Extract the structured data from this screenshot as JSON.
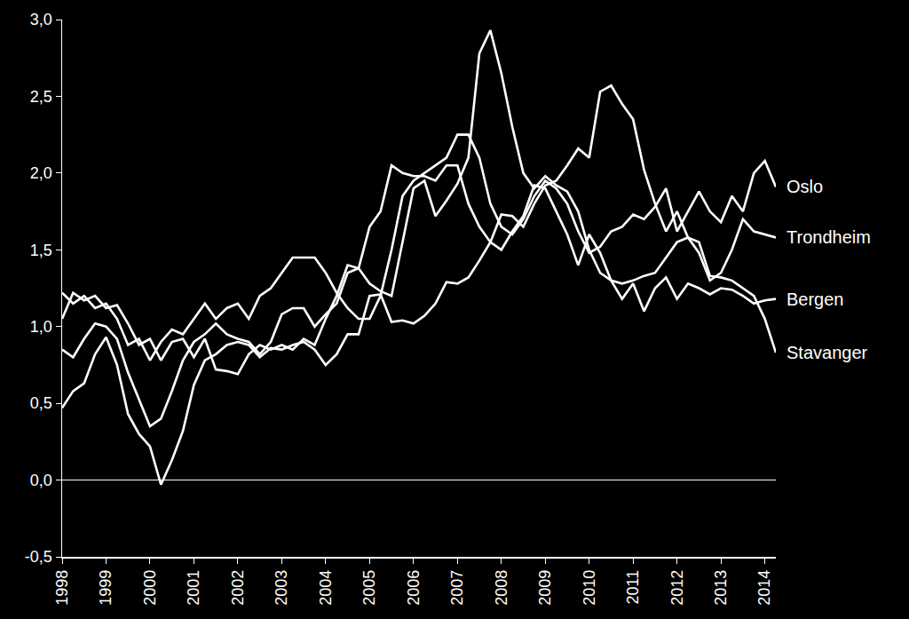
{
  "chart_data": {
    "type": "line",
    "x": [
      1998,
      1998.25,
      1998.5,
      1998.75,
      1999,
      1999.25,
      1999.5,
      1999.75,
      2000,
      2000.25,
      2000.5,
      2000.75,
      2001,
      2001.25,
      2001.5,
      2001.75,
      2002,
      2002.25,
      2002.5,
      2002.75,
      2003,
      2003.25,
      2003.5,
      2003.75,
      2004,
      2004.25,
      2004.5,
      2004.75,
      2005,
      2005.25,
      2005.5,
      2005.75,
      2006,
      2006.25,
      2006.5,
      2006.75,
      2007,
      2007.25,
      2007.5,
      2007.75,
      2008,
      2008.25,
      2008.5,
      2008.75,
      2009,
      2009.25,
      2009.5,
      2009.75,
      2010,
      2010.25,
      2010.5,
      2010.75,
      2011,
      2011.25,
      2011.5,
      2011.75,
      2012,
      2012.25,
      2012.5,
      2012.75,
      2013,
      2013.25,
      2013.5,
      2013.75,
      2014,
      2014.25
    ],
    "series": [
      {
        "name": "Oslo",
        "color": "#ffffff",
        "values": [
          1.22,
          1.15,
          1.2,
          1.12,
          1.15,
          1.05,
          0.88,
          0.92,
          0.78,
          0.9,
          0.98,
          0.95,
          1.05,
          1.15,
          1.05,
          1.12,
          1.15,
          1.05,
          1.2,
          1.25,
          1.35,
          1.45,
          1.45,
          1.45,
          1.35,
          1.22,
          1.12,
          1.05,
          1.05,
          1.2,
          1.5,
          1.85,
          1.95,
          2.0,
          2.05,
          2.1,
          2.25,
          2.25,
          2.1,
          1.8,
          1.65,
          1.6,
          1.7,
          1.85,
          1.95,
          1.9,
          1.8,
          1.62,
          1.48,
          1.52,
          1.62,
          1.65,
          1.73,
          1.7,
          1.78,
          1.9,
          1.62,
          1.75,
          1.88,
          1.75,
          1.68,
          1.85,
          1.75,
          2.0,
          2.08,
          1.91
        ]
      },
      {
        "name": "Trondheim",
        "color": "#ffffff",
        "values": [
          1.05,
          1.22,
          1.17,
          1.2,
          1.12,
          1.14,
          1.02,
          0.88,
          0.92,
          0.78,
          0.9,
          0.92,
          0.8,
          0.92,
          0.72,
          0.71,
          0.69,
          0.82,
          0.88,
          0.85,
          0.88,
          0.85,
          0.92,
          0.88,
          1.05,
          1.2,
          1.4,
          1.38,
          1.28,
          1.23,
          1.2,
          1.55,
          1.9,
          1.95,
          1.72,
          1.82,
          1.93,
          2.1,
          2.78,
          2.93,
          2.65,
          2.3,
          2.0,
          1.9,
          1.98,
          1.92,
          1.88,
          1.75,
          1.5,
          1.35,
          1.3,
          1.28,
          1.3,
          1.33,
          1.35,
          1.45,
          1.55,
          1.58,
          1.48,
          1.3,
          1.35,
          1.5,
          1.7,
          1.62,
          1.6,
          1.58
        ]
      },
      {
        "name": "Bergen",
        "color": "#ffffff",
        "values": [
          0.85,
          0.8,
          0.92,
          1.02,
          1.0,
          0.92,
          0.7,
          0.52,
          0.35,
          0.4,
          0.58,
          0.78,
          0.9,
          0.95,
          1.02,
          0.95,
          0.92,
          0.9,
          0.82,
          0.9,
          1.08,
          1.12,
          1.12,
          1.0,
          1.08,
          1.15,
          1.35,
          1.38,
          1.65,
          1.75,
          2.05,
          2.0,
          1.98,
          1.98,
          1.95,
          2.05,
          2.05,
          1.8,
          1.65,
          1.55,
          1.5,
          1.62,
          1.72,
          1.92,
          1.9,
          1.75,
          1.6,
          1.4,
          1.6,
          1.48,
          1.3,
          1.18,
          1.28,
          1.1,
          1.25,
          1.32,
          1.18,
          1.28,
          1.25,
          1.21,
          1.25,
          1.24,
          1.2,
          1.15,
          1.17,
          1.18
        ]
      },
      {
        "name": "Stavanger",
        "color": "#ffffff",
        "values": [
          0.47,
          0.58,
          0.63,
          0.82,
          0.93,
          0.75,
          0.43,
          0.3,
          0.22,
          -0.03,
          0.13,
          0.32,
          0.62,
          0.78,
          0.82,
          0.88,
          0.9,
          0.88,
          0.8,
          0.86,
          0.85,
          0.88,
          0.9,
          0.85,
          0.75,
          0.82,
          0.95,
          0.95,
          1.2,
          1.21,
          1.03,
          1.04,
          1.02,
          1.07,
          1.15,
          1.29,
          1.28,
          1.32,
          1.43,
          1.55,
          1.73,
          1.72,
          1.65,
          1.8,
          1.92,
          1.95,
          2.05,
          2.16,
          2.1,
          2.53,
          2.57,
          2.45,
          2.35,
          2.02,
          1.8,
          1.62,
          1.75,
          1.58,
          1.55,
          1.33,
          1.32,
          1.3,
          1.25,
          1.2,
          1.05,
          0.83
        ]
      }
    ],
    "xlim": [
      1998,
      2014.25
    ],
    "xticks": [
      1998,
      1999,
      2000,
      2001,
      2002,
      2003,
      2004,
      2005,
      2006,
      2007,
      2008,
      2009,
      2010,
      2011,
      2012,
      2013,
      2014
    ],
    "ylim": [
      -0.5,
      3.0
    ],
    "yticks": [
      {
        "value": -0.5,
        "label": "-0,5"
      },
      {
        "value": 0,
        "label": "0,0"
      },
      {
        "value": 0.5,
        "label": "0,5"
      },
      {
        "value": 1.0,
        "label": "1,0"
      },
      {
        "value": 1.5,
        "label": "1,5"
      },
      {
        "value": 2.0,
        "label": "2,0"
      },
      {
        "value": 2.5,
        "label": "2,5"
      },
      {
        "value": 3.0,
        "label": "3,0"
      }
    ],
    "grid": false
  }
}
